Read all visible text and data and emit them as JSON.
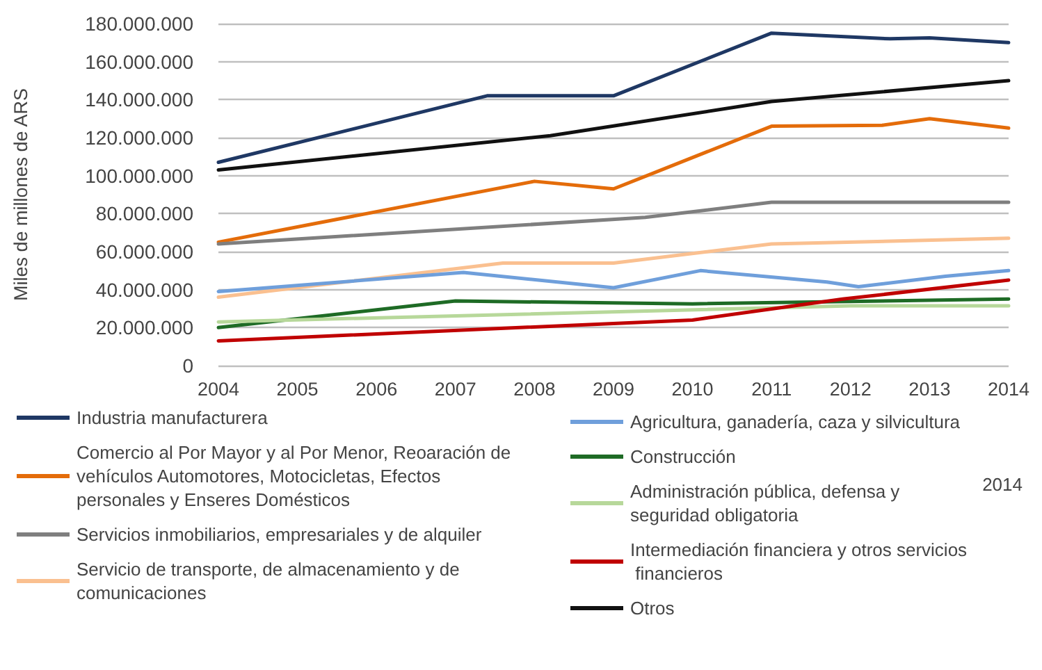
{
  "chart_data": {
    "type": "line",
    "ylabel": "Miles de millones de ARS",
    "xlim": [
      2004,
      2014
    ],
    "xticks": [
      2004,
      2005,
      2006,
      2007,
      2008,
      2009,
      2010,
      2011,
      2012,
      2013,
      2014
    ],
    "ylim": [
      0,
      180000000
    ],
    "yticks": [
      0,
      {
        "value": 20000000,
        "label": "20.000.000"
      },
      {
        "value": 40000000,
        "label": "40.000.000"
      },
      {
        "value": 60000000,
        "label": "60.000.000"
      },
      {
        "value": 80000000,
        "label": "80.000.000"
      },
      {
        "value": 100000000,
        "label": "100.000.000"
      },
      {
        "value": 120000000,
        "label": "120.000.000"
      },
      {
        "value": 140000000,
        "label": "140.000.000"
      },
      {
        "value": 160000000,
        "label": "160.000.000"
      },
      {
        "value": 180000000,
        "label": "180.000.000"
      }
    ],
    "grid": "y",
    "legend": "bottom",
    "marker": "none",
    "line_style": "solid",
    "annotations": [
      "2014"
    ],
    "series": [
      {
        "name": "Industria manufacturera",
        "color": "#1f3864",
        "x": [
          2004,
          2007.4,
          2009,
          2011,
          2012.5,
          2013,
          2014
        ],
        "values": [
          107000000,
          142000000,
          142000000,
          175000000,
          172000000,
          172500000,
          170000000
        ]
      },
      {
        "name": "Comercio al Por Mayor y al Por Menor, Reoaración de vehículos Automotores, Motocicletas, Efectos personales y Enseres Domésticos",
        "color": "#e46c0a",
        "x": [
          2004,
          2008,
          2009,
          2011,
          2012.4,
          2013,
          2014
        ],
        "values": [
          65000000,
          97000000,
          93000000,
          126000000,
          126500000,
          130000000,
          125000000
        ]
      },
      {
        "name": "Servicios inmobiliarios, empresariales y de alquiler",
        "color": "#7f7f7f",
        "x": [
          2004,
          2009.4,
          2011,
          2014
        ],
        "values": [
          64000000,
          78000000,
          86000000,
          86000000
        ]
      },
      {
        "name": "Servicio de transporte, de almacenamiento y de comunicaciones",
        "color": "#fac090",
        "x": [
          2004,
          2007.6,
          2009,
          2011,
          2014
        ],
        "values": [
          36000000,
          54000000,
          54000000,
          64000000,
          67000000
        ]
      },
      {
        "name": "Agricultura, ganadería, caza y silvicultura",
        "color": "#6f9fdb",
        "x": [
          2004,
          2007.1,
          2009,
          2010.1,
          2011.7,
          2012.1,
          2013.2,
          2014
        ],
        "values": [
          39000000,
          49000000,
          41000000,
          50000000,
          44000000,
          41500000,
          47000000,
          50000000
        ]
      },
      {
        "name": "Construcción",
        "color": "#1e6b25",
        "x": [
          2004,
          2007,
          2010,
          2014
        ],
        "values": [
          20000000,
          34000000,
          32500000,
          35000000
        ]
      },
      {
        "name": "Administración pública, defensa y seguridad obligatoria",
        "color": "#b7d89a",
        "x": [
          2004,
          2012,
          2014
        ],
        "values": [
          23000000,
          31500000,
          31500000
        ]
      },
      {
        "name": "Intermediación financiera y otros servicios financieros",
        "color": "#c00000",
        "x": [
          2004,
          2010,
          2011.9,
          2014
        ],
        "values": [
          13000000,
          24000000,
          35000000,
          45000000
        ]
      },
      {
        "name": "Otros",
        "color": "#111111",
        "x": [
          2004,
          2008.2,
          2011,
          2014
        ],
        "values": [
          103000000,
          121000000,
          139000000,
          150000000
        ]
      }
    ]
  }
}
